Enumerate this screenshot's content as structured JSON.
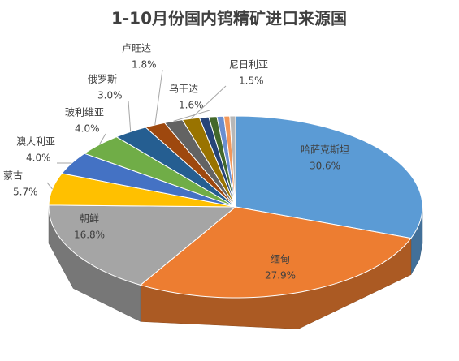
{
  "chart_data": {
    "type": "pie3d",
    "title": "1-10月份国内钨精矿进口来源国",
    "categories": [
      "哈萨克斯坦",
      "缅甸",
      "朝鲜",
      "蒙古",
      "澳大利亚",
      "玻利维亚",
      "俄罗斯",
      "卢旺达",
      "乌干达",
      "尼日利亚",
      null,
      null,
      null,
      null,
      null
    ],
    "values": [
      30.6,
      27.9,
      16.8,
      5.7,
      4.0,
      4.0,
      3.0,
      1.8,
      1.6,
      1.5,
      0.8,
      0.7,
      0.6,
      0.5,
      0.5
    ],
    "value_labels": [
      "30.6%",
      "27.9%",
      "16.8%",
      "5.7%",
      "4.0%",
      "4.0%",
      "3.0%",
      "1.8%",
      "1.6%",
      "1.5%",
      null,
      null,
      null,
      null,
      null
    ],
    "colors": [
      "#5b9bd5",
      "#ed7d31",
      "#a5a5a5",
      "#ffc000",
      "#4472c4",
      "#70ad47",
      "#255e91",
      "#9e480e",
      "#636363",
      "#997300",
      "#264478",
      "#43682b",
      "#698ed0",
      "#f1975a",
      "#b7b7b7"
    ]
  }
}
